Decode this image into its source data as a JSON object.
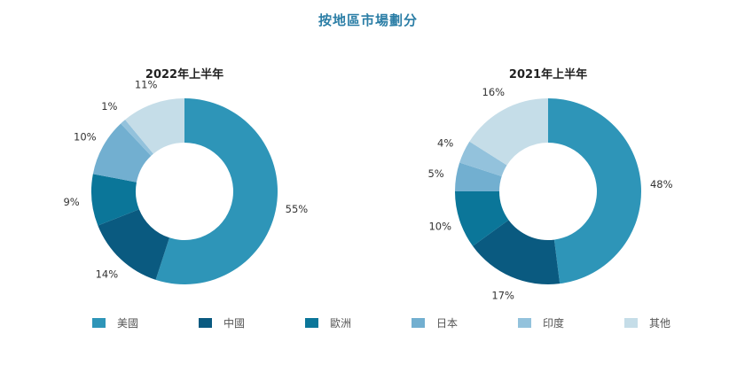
{
  "chart_data": {
    "type": "pie",
    "title": "按地區市場劃分",
    "legend": {
      "placement": "bottom",
      "entries": [
        "美國",
        "中國",
        "歐洲",
        "日本",
        "印度",
        "其他"
      ]
    },
    "colors": [
      "#2e95b8",
      "#0a5a80",
      "#0b7699",
      "#72afd0",
      "#93c2dc",
      "#c5dde8"
    ],
    "charts": [
      {
        "subtitle": "2022年上半年",
        "categories": [
          "美國",
          "中國",
          "歐洲",
          "日本",
          "印度",
          "其他"
        ],
        "values": [
          55,
          14,
          9,
          10,
          1,
          11
        ],
        "labels": [
          "55%",
          "14%",
          "9%",
          "10%",
          "1%",
          "11%"
        ]
      },
      {
        "subtitle": "2021年上半年",
        "categories": [
          "美國",
          "中國",
          "歐洲",
          "日本",
          "印度",
          "其他"
        ],
        "values": [
          48,
          17,
          10,
          5,
          4,
          16
        ],
        "labels": [
          "48%",
          "17%",
          "10%",
          "5%",
          "4%",
          "16%"
        ]
      }
    ]
  }
}
